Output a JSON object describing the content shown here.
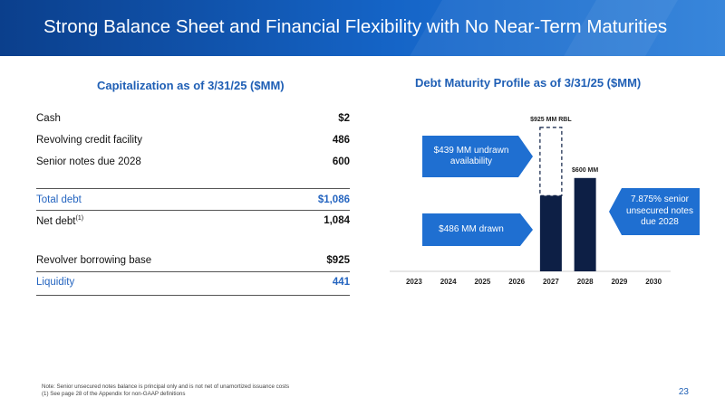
{
  "header": {
    "title": "Strong Balance Sheet and Financial Flexibility with No Near-Term Maturities"
  },
  "capitalization": {
    "title": "Capitalization as of 3/31/25 ($MM)",
    "rows": [
      {
        "label": "Cash",
        "value": "$2"
      },
      {
        "label": "Revolving credit facility",
        "value": "486"
      },
      {
        "label": "Senior notes due 2028",
        "value": "600"
      },
      {
        "label": "Total debt",
        "value": "$1,086"
      },
      {
        "label": "Net debt",
        "sup": "(1)",
        "value": "1,084"
      },
      {
        "label": "Revolver borrowing base",
        "value": "$925"
      },
      {
        "label": "Liquidity",
        "value": "441"
      }
    ]
  },
  "maturity": {
    "title": "Debt Maturity Profile as of 3/31/25 ($MM)",
    "callouts": {
      "undrawn": "$439 MM undrawn availability",
      "drawn": "$486 MM drawn",
      "senior": "7.875% senior unsecured notes due 2028"
    },
    "colors": {
      "bar": "#0d1f45",
      "callout": "#1f6fd1",
      "accent": "#1f5fb5"
    }
  },
  "chart_data": {
    "type": "bar",
    "title": "Debt Maturity Profile as of 3/31/25 ($MM)",
    "categories": [
      "2023",
      "2024",
      "2025",
      "2026",
      "2027",
      "2028",
      "2029",
      "2030"
    ],
    "series": [
      {
        "name": "drawn",
        "values": [
          0,
          0,
          0,
          0,
          486,
          600,
          0,
          0
        ]
      },
      {
        "name": "undrawn",
        "values": [
          0,
          0,
          0,
          0,
          439,
          0,
          0,
          0
        ]
      }
    ],
    "data_labels": [
      {
        "category": "2027",
        "text": "$925 MM RBL"
      },
      {
        "category": "2028",
        "text": "$600 MM"
      }
    ],
    "stacked": true,
    "ylim": [
      0,
      1000
    ],
    "grid": false,
    "legend": "none"
  },
  "footnotes": [
    "Note: Senior unsecured notes balance is principal only and is not net of unamortized issuance costs",
    "(1) See page 28 of the Appendix for non-GAAP definitions"
  ],
  "page_number": "23"
}
